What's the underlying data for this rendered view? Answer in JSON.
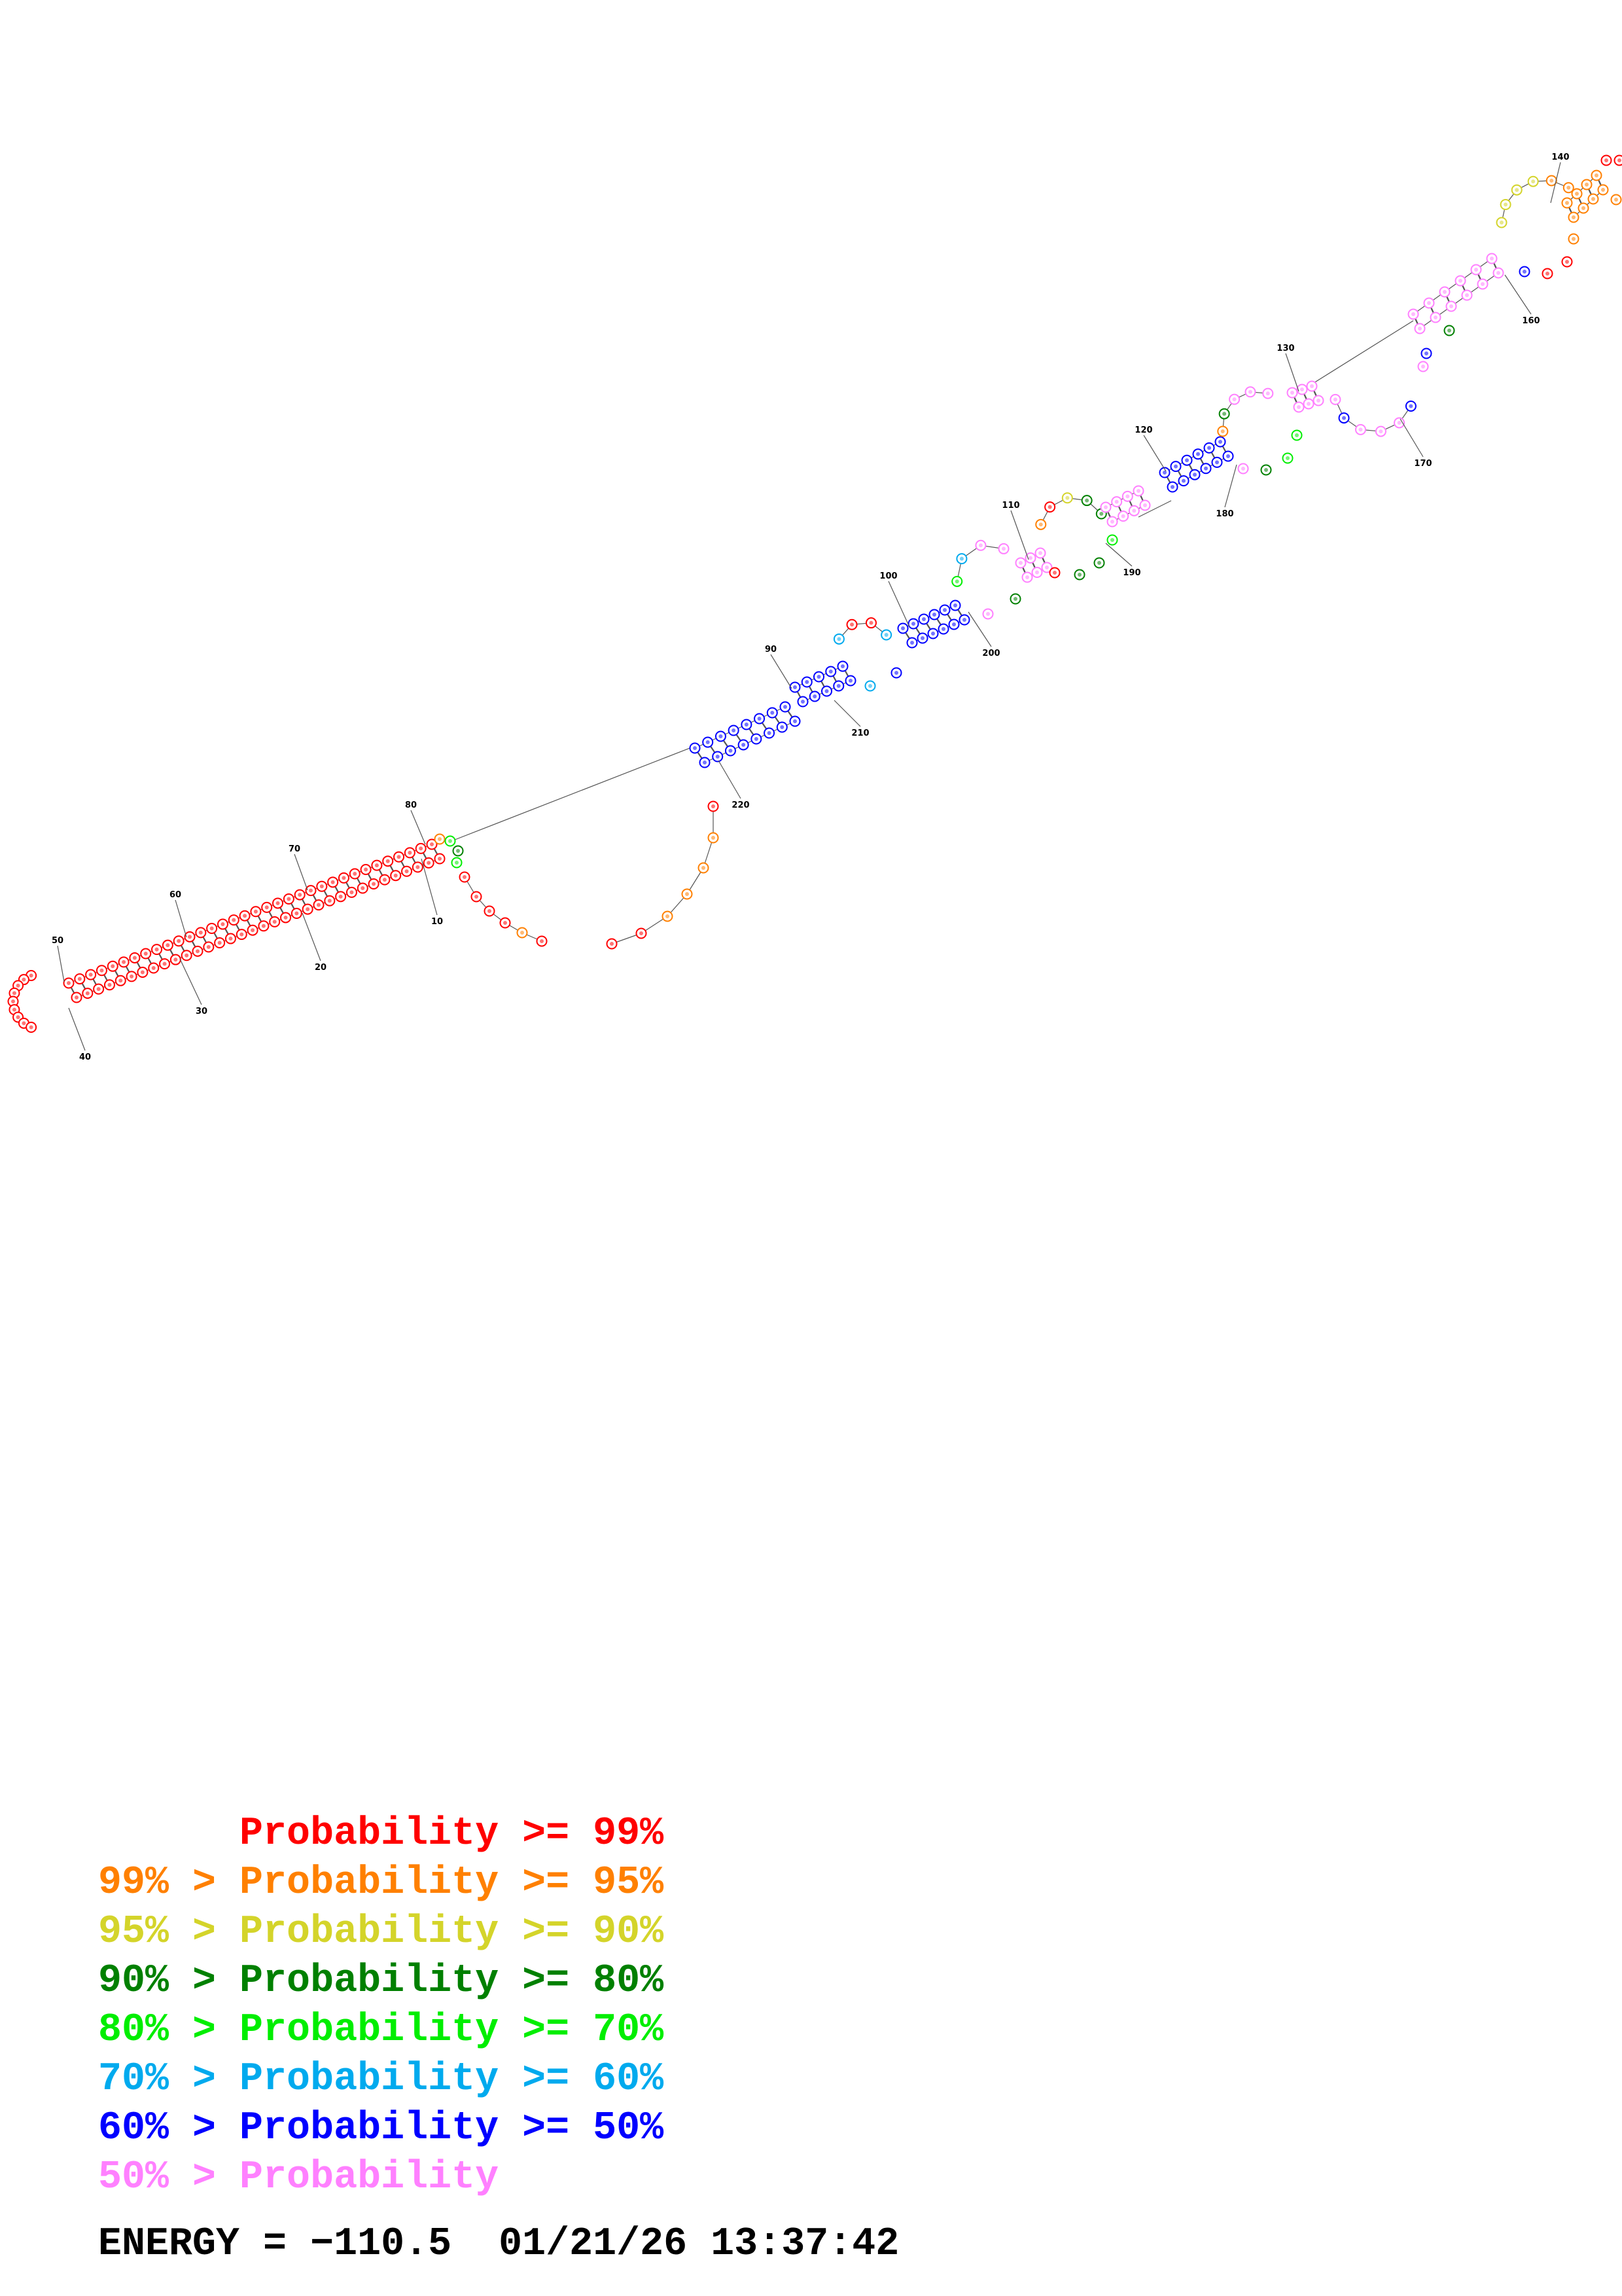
{
  "diagram": {
    "type": "rna-secondary-structure",
    "position_labels": [
      "10",
      "20",
      "30",
      "40",
      "50",
      "60",
      "70",
      "80",
      "90",
      "100",
      "110",
      "120",
      "130",
      "140",
      "160",
      "170",
      "180",
      "190",
      "200",
      "210",
      "220"
    ],
    "probability_colors": {
      "ge99": "#ff0000",
      "95to99": "#ff8000",
      "90to95": "#d4d42a",
      "80to90": "#008000",
      "70to80": "#00ee00",
      "60to70": "#00aaee",
      "50to60": "#0000ff",
      "lt50": "#ff80ff"
    }
  },
  "legend": {
    "rows": [
      {
        "prefix": "",
        "label": "Probability",
        "suffix": ">= 99%",
        "color": "#ff0000"
      },
      {
        "prefix": "99% >",
        "label": "Probability",
        "suffix": ">= 95%",
        "color": "#ff8000"
      },
      {
        "prefix": "95% >",
        "label": "Probability",
        "suffix": ">= 90%",
        "color": "#d4d42a"
      },
      {
        "prefix": "90% >",
        "label": "Probability",
        "suffix": ">= 80%",
        "color": "#008000"
      },
      {
        "prefix": "80% >",
        "label": "Probability",
        "suffix": ">= 70%",
        "color": "#00ee00"
      },
      {
        "prefix": "70% >",
        "label": "Probability",
        "suffix": ">= 60%",
        "color": "#00aaee"
      },
      {
        "prefix": "60% >",
        "label": "Probability",
        "suffix": ">= 50%",
        "color": "#0000ff"
      },
      {
        "prefix": "50% >",
        "label": "Probability",
        "suffix": "",
        "color": "#ff80ff"
      }
    ]
  },
  "energy": {
    "label": "ENERGY = ",
    "value": "−110.5",
    "timestamp": "01/21/26 13:37:42"
  }
}
